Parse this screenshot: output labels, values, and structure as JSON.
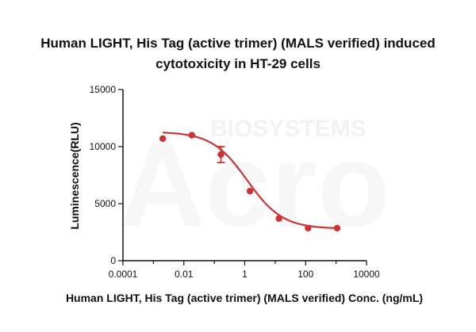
{
  "chart_data": {
    "type": "scatter",
    "title": [
      "Human LIGHT, His Tag (active trimer) (MALS verified) induced",
      "cytotoxicity in HT-29 cells"
    ],
    "xlabel": "Human LIGHT, His Tag (active trimer) (MALS verified) Conc. (ng/mL)",
    "ylabel": "Luminescence(RLU)",
    "x_scale": "log",
    "xlim": [
      0.0001,
      10000
    ],
    "ylim": [
      0,
      15000
    ],
    "x_ticks": [
      0.0001,
      0.01,
      1,
      100,
      10000
    ],
    "x_tick_labels": [
      "0.0001",
      "0.01",
      "1",
      "100",
      "10000"
    ],
    "y_ticks": [
      0,
      5000,
      10000,
      15000
    ],
    "y_tick_labels": [
      "0",
      "5000",
      "10000",
      "15000"
    ],
    "grid": false,
    "series": [
      {
        "x": [
          0.00203,
          0.0183,
          0.165,
          1.48,
          13.3,
          120,
          1080
        ],
        "y": [
          10700,
          11000,
          9300,
          6100,
          3700,
          2850,
          2850
        ],
        "error": [
          0,
          0,
          700,
          0,
          0,
          0,
          0
        ],
        "fit": {
          "model": "4PL",
          "top": 11300,
          "bottom": 2800,
          "ec50": 1.2,
          "hill": 0.75
        }
      }
    ],
    "colors": {
      "series": "#cc3333",
      "axis": "#111111"
    }
  },
  "watermark": {
    "text": "BIOSYSTEMS",
    "logo": "Acro"
  }
}
